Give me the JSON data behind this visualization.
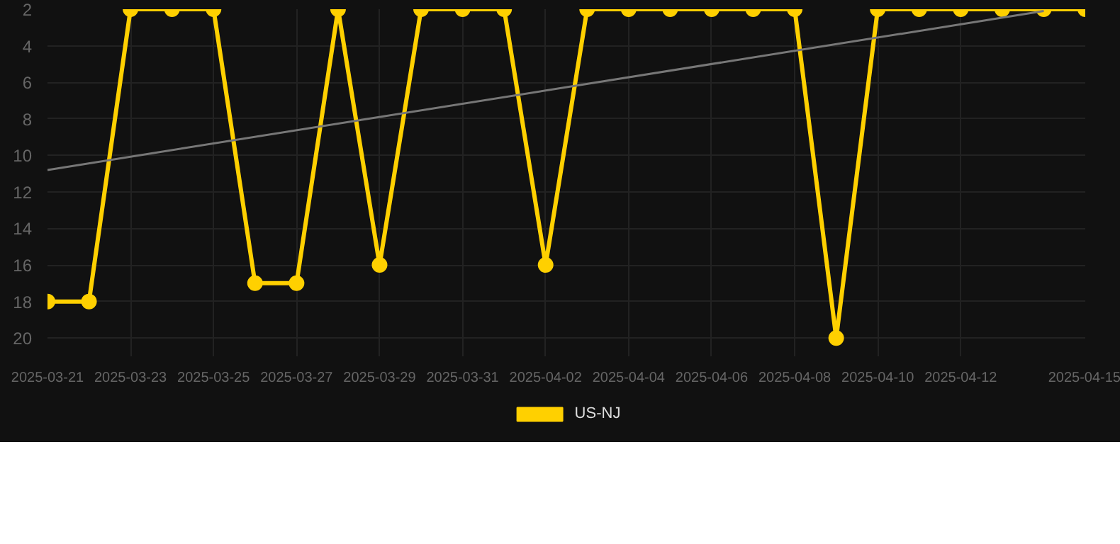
{
  "chart_data": {
    "type": "line",
    "x": [
      "2025-03-21",
      "2025-03-22",
      "2025-03-23",
      "2025-03-24",
      "2025-03-25",
      "2025-03-26",
      "2025-03-27",
      "2025-03-28",
      "2025-03-29",
      "2025-03-30",
      "2025-03-31",
      "2025-04-01",
      "2025-04-02",
      "2025-04-03",
      "2025-04-04",
      "2025-04-05",
      "2025-04-06",
      "2025-04-07",
      "2025-04-08",
      "2025-04-09",
      "2025-04-10",
      "2025-04-11",
      "2025-04-12",
      "2025-04-13",
      "2025-04-14",
      "2025-04-15"
    ],
    "series": [
      {
        "name": "US-NJ",
        "color": "#ffd000",
        "marker": "circle",
        "values": [
          18,
          18,
          2,
          2,
          2,
          17,
          17,
          2,
          16,
          2,
          2,
          2,
          16,
          2,
          2,
          2,
          2,
          2,
          2,
          20,
          2,
          2,
          2,
          2,
          2,
          2
        ]
      },
      {
        "type": "line",
        "color": "#777777",
        "marker": "none",
        "x": [
          "2025-03-21",
          "2025-04-14"
        ],
        "values": [
          10.8,
          2.1
        ]
      }
    ],
    "ylim": [
      21,
      2
    ],
    "yticks": [
      2,
      4,
      6,
      8,
      10,
      12,
      14,
      16,
      18,
      20
    ],
    "xlim": [
      "2025-03-21",
      "2025-04-15"
    ],
    "xticks": [
      "2025-03-21",
      "2025-03-23",
      "2025-03-25",
      "2025-03-27",
      "2025-03-29",
      "2025-03-31",
      "2025-04-02",
      "2025-04-04",
      "2025-04-06",
      "2025-04-08",
      "2025-04-10",
      "2025-04-12",
      "2025-04-15"
    ],
    "grid": true,
    "legend": "bottom"
  }
}
